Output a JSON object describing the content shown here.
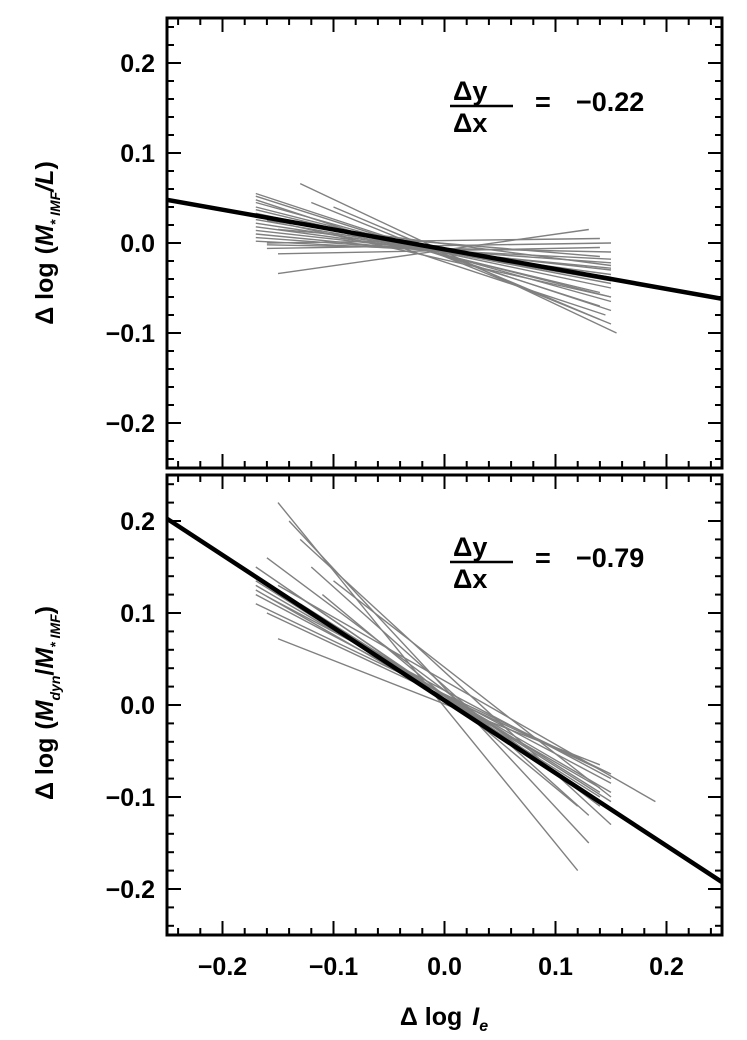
{
  "chart_data": [
    {
      "type": "line",
      "panel": "top",
      "ylabel": "Δ log (M*IMF/L)",
      "ylabel_parts": {
        "delta_log": "Δ log",
        "open": "(",
        "M": "M",
        "sub": "* IMF",
        "rest": "/L",
        "close": ")"
      },
      "xlim": [
        -0.25,
        0.25
      ],
      "ylim": [
        -0.25,
        0.25
      ],
      "xticks": [
        -0.2,
        -0.1,
        0.0,
        0.1,
        0.2
      ],
      "yticks": [
        -0.2,
        -0.1,
        0.0,
        0.1,
        0.2
      ],
      "ytick_labels": [
        "−0.2",
        "−0.1",
        "0.0",
        "0.1",
        "0.2"
      ],
      "grid": false,
      "annotation": {
        "numerator": "Δy",
        "denominator": "Δx",
        "relation": "=",
        "value": "−0.22"
      },
      "fit_line": {
        "slope": -0.22,
        "intercept": -0.007,
        "x": [
          -0.25,
          0.25
        ],
        "color": "#000000"
      },
      "sample_lines": {
        "color": "#808080",
        "lines": [
          [
            -0.17,
            0.055,
            0.15,
            -0.075
          ],
          [
            -0.17,
            0.052,
            0.14,
            -0.07
          ],
          [
            -0.17,
            0.048,
            0.145,
            -0.08
          ],
          [
            -0.17,
            0.045,
            0.15,
            -0.065
          ],
          [
            -0.17,
            0.04,
            0.15,
            -0.06
          ],
          [
            -0.17,
            0.037,
            0.14,
            -0.055
          ],
          [
            -0.17,
            0.033,
            0.15,
            -0.05
          ],
          [
            -0.17,
            0.03,
            0.15,
            -0.045
          ],
          [
            -0.17,
            0.026,
            0.15,
            -0.042
          ],
          [
            -0.17,
            0.022,
            0.15,
            -0.038
          ],
          [
            -0.17,
            0.018,
            0.15,
            -0.035
          ],
          [
            -0.17,
            0.014,
            0.15,
            -0.03
          ],
          [
            -0.17,
            0.01,
            0.15,
            -0.028
          ],
          [
            -0.17,
            0.006,
            0.15,
            -0.022
          ],
          [
            -0.17,
            0.002,
            0.15,
            -0.018
          ],
          [
            -0.16,
            -0.002,
            0.15,
            -0.01
          ],
          [
            -0.16,
            0.0,
            0.14,
            0.005
          ],
          [
            -0.16,
            -0.006,
            0.15,
            0.0
          ],
          [
            -0.15,
            -0.012,
            0.14,
            -0.005
          ],
          [
            -0.15,
            -0.034,
            0.13,
            0.015
          ],
          [
            -0.13,
            0.066,
            0.155,
            -0.1
          ],
          [
            -0.12,
            0.045,
            0.15,
            -0.09
          ],
          [
            -0.14,
            0.02,
            0.15,
            -0.06
          ],
          [
            -0.1,
            0.04,
            0.14,
            -0.085
          ],
          [
            -0.15,
            0.015,
            0.14,
            -0.015
          ],
          [
            -0.16,
            0.025,
            0.15,
            -0.025
          ]
        ]
      }
    },
    {
      "type": "line",
      "panel": "bottom",
      "xlabel": "Δ log Ie",
      "xlabel_parts": {
        "delta_log": "Δ log",
        "I": "I",
        "sub": "e"
      },
      "ylabel": "Δ log (Mdyn/M*IMF)",
      "ylabel_parts": {
        "delta_log": "Δ log",
        "open": "(",
        "M1": "M",
        "sub1": "dyn",
        "slash": "/",
        "M2": "M",
        "sub2": "* IMF",
        "close": ")"
      },
      "xlim": [
        -0.25,
        0.25
      ],
      "ylim": [
        -0.25,
        0.25
      ],
      "xticks": [
        -0.2,
        -0.1,
        0.0,
        0.1,
        0.2
      ],
      "xtick_labels": [
        "−0.2",
        "−0.1",
        "0.0",
        "0.1",
        "0.2"
      ],
      "yticks": [
        -0.2,
        -0.1,
        0.0,
        0.1,
        0.2
      ],
      "ytick_labels": [
        "−0.2",
        "−0.1",
        "0.0",
        "0.1",
        "0.2"
      ],
      "grid": false,
      "annotation": {
        "numerator": "Δy",
        "denominator": "Δx",
        "relation": "=",
        "value": "−0.79"
      },
      "fit_line": {
        "slope": -0.79,
        "intercept": 0.005,
        "x": [
          -0.25,
          0.25
        ],
        "color": "#000000"
      },
      "sample_lines": {
        "color": "#808080",
        "lines": [
          [
            -0.15,
            0.22,
            0.12,
            -0.18
          ],
          [
            -0.14,
            0.2,
            0.13,
            -0.15
          ],
          [
            -0.13,
            0.18,
            0.15,
            -0.13
          ],
          [
            -0.16,
            0.16,
            0.14,
            -0.11
          ],
          [
            -0.17,
            0.15,
            0.15,
            -0.115
          ],
          [
            -0.17,
            0.14,
            0.15,
            -0.105
          ],
          [
            -0.17,
            0.135,
            0.14,
            -0.1
          ],
          [
            -0.17,
            0.13,
            0.15,
            -0.095
          ],
          [
            -0.17,
            0.125,
            0.14,
            -0.09
          ],
          [
            -0.17,
            0.12,
            0.15,
            -0.085
          ],
          [
            -0.16,
            0.118,
            0.15,
            -0.08
          ],
          [
            -0.17,
            0.11,
            0.15,
            -0.075
          ],
          [
            -0.14,
            0.125,
            0.14,
            -0.105
          ],
          [
            -0.12,
            0.15,
            0.13,
            -0.12
          ],
          [
            -0.1,
            0.135,
            0.15,
            -0.1
          ],
          [
            -0.15,
            0.13,
            0.19,
            -0.105
          ],
          [
            -0.15,
            0.072,
            0.14,
            -0.065
          ],
          [
            -0.16,
            0.1,
            0.14,
            -0.07
          ],
          [
            -0.13,
            0.11,
            0.14,
            -0.095
          ],
          [
            -0.11,
            0.12,
            0.12,
            -0.11
          ]
        ]
      }
    }
  ]
}
